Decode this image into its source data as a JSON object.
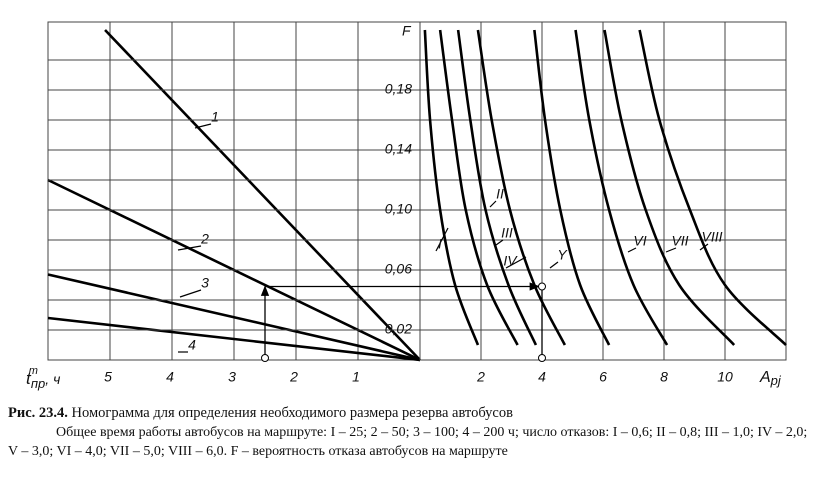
{
  "chart_data": [
    {
      "type": "line",
      "name": "left",
      "xlabel": {
        "base": "t",
        "sub": "пр",
        "sup": "т",
        "unit": ", ч"
      },
      "xlim": [
        6,
        0
      ],
      "ylim": [
        0,
        0.22
      ],
      "xticks": [
        1,
        2,
        3,
        4,
        5
      ],
      "series": [
        {
          "name": "1",
          "x": [
            0,
            5.08
          ],
          "values": [
            0,
            0.22
          ]
        },
        {
          "name": "2",
          "x": [
            0,
            6
          ],
          "values": [
            0,
            0.12
          ]
        },
        {
          "name": "3",
          "x": [
            0,
            6
          ],
          "values": [
            0,
            0.057
          ]
        },
        {
          "name": "4",
          "x": [
            0,
            6
          ],
          "values": [
            0,
            0.028
          ]
        }
      ],
      "example": {
        "x": 2.5,
        "y": 0.049
      }
    },
    {
      "type": "line",
      "name": "right",
      "ylabel": "F",
      "xlabel": {
        "base": "A",
        "sub": "pj"
      },
      "xlim": [
        0,
        12
      ],
      "ylim": [
        0,
        0.22
      ],
      "xticks": [
        2,
        4,
        6,
        8,
        10
      ],
      "yticks": [
        {
          "value": 0.02,
          "label": "0,02"
        },
        {
          "value": 0.06,
          "label": "0,06"
        },
        {
          "value": 0.1,
          "label": "0,10"
        },
        {
          "value": 0.14,
          "label": "0,14"
        },
        {
          "value": 0.18,
          "label": "0,18"
        }
      ],
      "ygrid": [
        0.04,
        0.08,
        0.12,
        0.16,
        0.2
      ],
      "series": [
        {
          "name": "I",
          "x": [
            0.16,
            0.33,
            0.66,
            1.15,
            1.9
          ],
          "values": [
            0.22,
            0.16,
            0.1,
            0.05,
            0.01
          ]
        },
        {
          "name": "II",
          "x": [
            0.66,
            1.05,
            1.5,
            2.2,
            3.2
          ],
          "values": [
            0.22,
            0.16,
            0.1,
            0.05,
            0.01
          ]
        },
        {
          "name": "III",
          "x": [
            1.25,
            1.65,
            2.15,
            2.9,
            3.8
          ],
          "values": [
            0.22,
            0.16,
            0.1,
            0.05,
            0.01
          ]
        },
        {
          "name": "IV",
          "x": [
            1.9,
            2.35,
            2.95,
            3.75,
            4.75
          ],
          "values": [
            0.22,
            0.16,
            0.1,
            0.05,
            0.01
          ]
        },
        {
          "name": "Y",
          "x": [
            3.75,
            4.1,
            4.6,
            5.25,
            6.2
          ],
          "values": [
            0.22,
            0.16,
            0.1,
            0.05,
            0.01
          ]
        },
        {
          "name": "VI",
          "x": [
            5.1,
            5.55,
            6.2,
            7.0,
            8.1
          ],
          "values": [
            0.22,
            0.16,
            0.1,
            0.05,
            0.01
          ]
        },
        {
          "name": "VII",
          "x": [
            6.05,
            6.6,
            7.4,
            8.5,
            10.3
          ],
          "values": [
            0.22,
            0.16,
            0.1,
            0.05,
            0.01
          ]
        },
        {
          "name": "VIII",
          "x": [
            7.2,
            7.85,
            8.85,
            10.0,
            12
          ],
          "values": [
            0.22,
            0.16,
            0.1,
            0.05,
            0.01
          ]
        }
      ],
      "example": {
        "x": 4,
        "y": 0.049
      }
    },
    {
      "type": "caption",
      "label": "Рис. 23.4.",
      "title": "Номограмма для определения необходимого размера резерва автобусов",
      "text": "Общее время работы автобусов на маршруте: I – 25; 2 – 50; 3 – 100; 4 – 200 ч; число отказов: I – 0,6; II – 0,8; III – 1,0; IV – 2,0; V – 3,0; VI – 4,0; VII – 5,0; VIII – 6,0. F – вероятность отказа автобусов на маршруте"
    }
  ]
}
